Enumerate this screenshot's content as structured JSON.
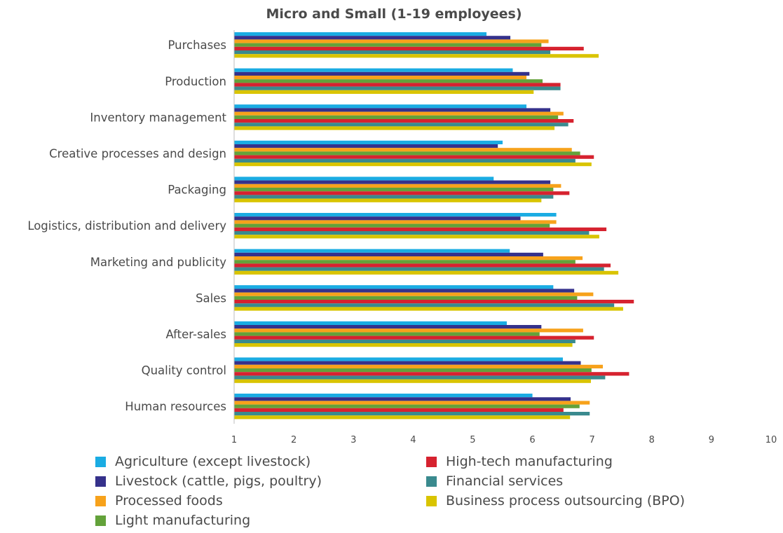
{
  "chart_data": {
    "type": "bar",
    "orientation": "horizontal",
    "title": "Micro and Small (1-19 employees)",
    "xlabel": "",
    "ylabel": "",
    "xlim": [
      1,
      10
    ],
    "xticks": [
      "1",
      "2",
      "3",
      "4",
      "5",
      "6",
      "7",
      "8",
      "9",
      "10"
    ],
    "grid": false,
    "legend_position": "bottom",
    "categories": [
      "Purchases",
      "Production",
      "Inventory management",
      "Creative processes and design",
      "Packaging",
      "Logistics, distribution and delivery",
      "Marketing and publicity",
      "Sales",
      "After-sales",
      "Quality control",
      "Human resources"
    ],
    "series": [
      {
        "name": "Agriculture (except livestock)",
        "color": "#1AACE3",
        "values": [
          5.23,
          5.67,
          5.9,
          5.5,
          5.35,
          6.4,
          5.62,
          6.35,
          5.57,
          6.51,
          6.0
        ]
      },
      {
        "name": "Livestock (cattle, pigs, poultry)",
        "color": "#35318B",
        "values": [
          5.63,
          5.95,
          6.3,
          5.42,
          6.3,
          5.8,
          6.18,
          6.7,
          6.15,
          6.81,
          6.64
        ]
      },
      {
        "name": "Processed foods",
        "color": "#F7A21B",
        "values": [
          6.27,
          5.9,
          6.52,
          6.66,
          6.48,
          6.4,
          6.84,
          7.02,
          6.85,
          7.18,
          6.96
        ]
      },
      {
        "name": "Light manufacturing",
        "color": "#63A23A",
        "values": [
          6.15,
          6.17,
          6.43,
          6.8,
          6.35,
          6.29,
          6.72,
          6.75,
          6.12,
          6.99,
          6.79
        ]
      },
      {
        "name": "High-tech manufacturing",
        "color": "#D6222F",
        "values": [
          6.86,
          6.47,
          6.69,
          7.03,
          6.62,
          7.24,
          7.31,
          7.7,
          7.03,
          7.62,
          6.52
        ]
      },
      {
        "name": "Financial services",
        "color": "#3A8A8E",
        "values": [
          6.3,
          6.47,
          6.6,
          6.72,
          6.35,
          6.95,
          7.2,
          7.37,
          6.72,
          7.22,
          6.96
        ]
      },
      {
        "name": "Business process outsourcing (BPO)",
        "color": "#D9C400",
        "values": [
          7.11,
          6.02,
          6.37,
          6.99,
          6.15,
          7.12,
          7.44,
          7.52,
          6.67,
          6.98,
          6.63
        ]
      }
    ]
  }
}
